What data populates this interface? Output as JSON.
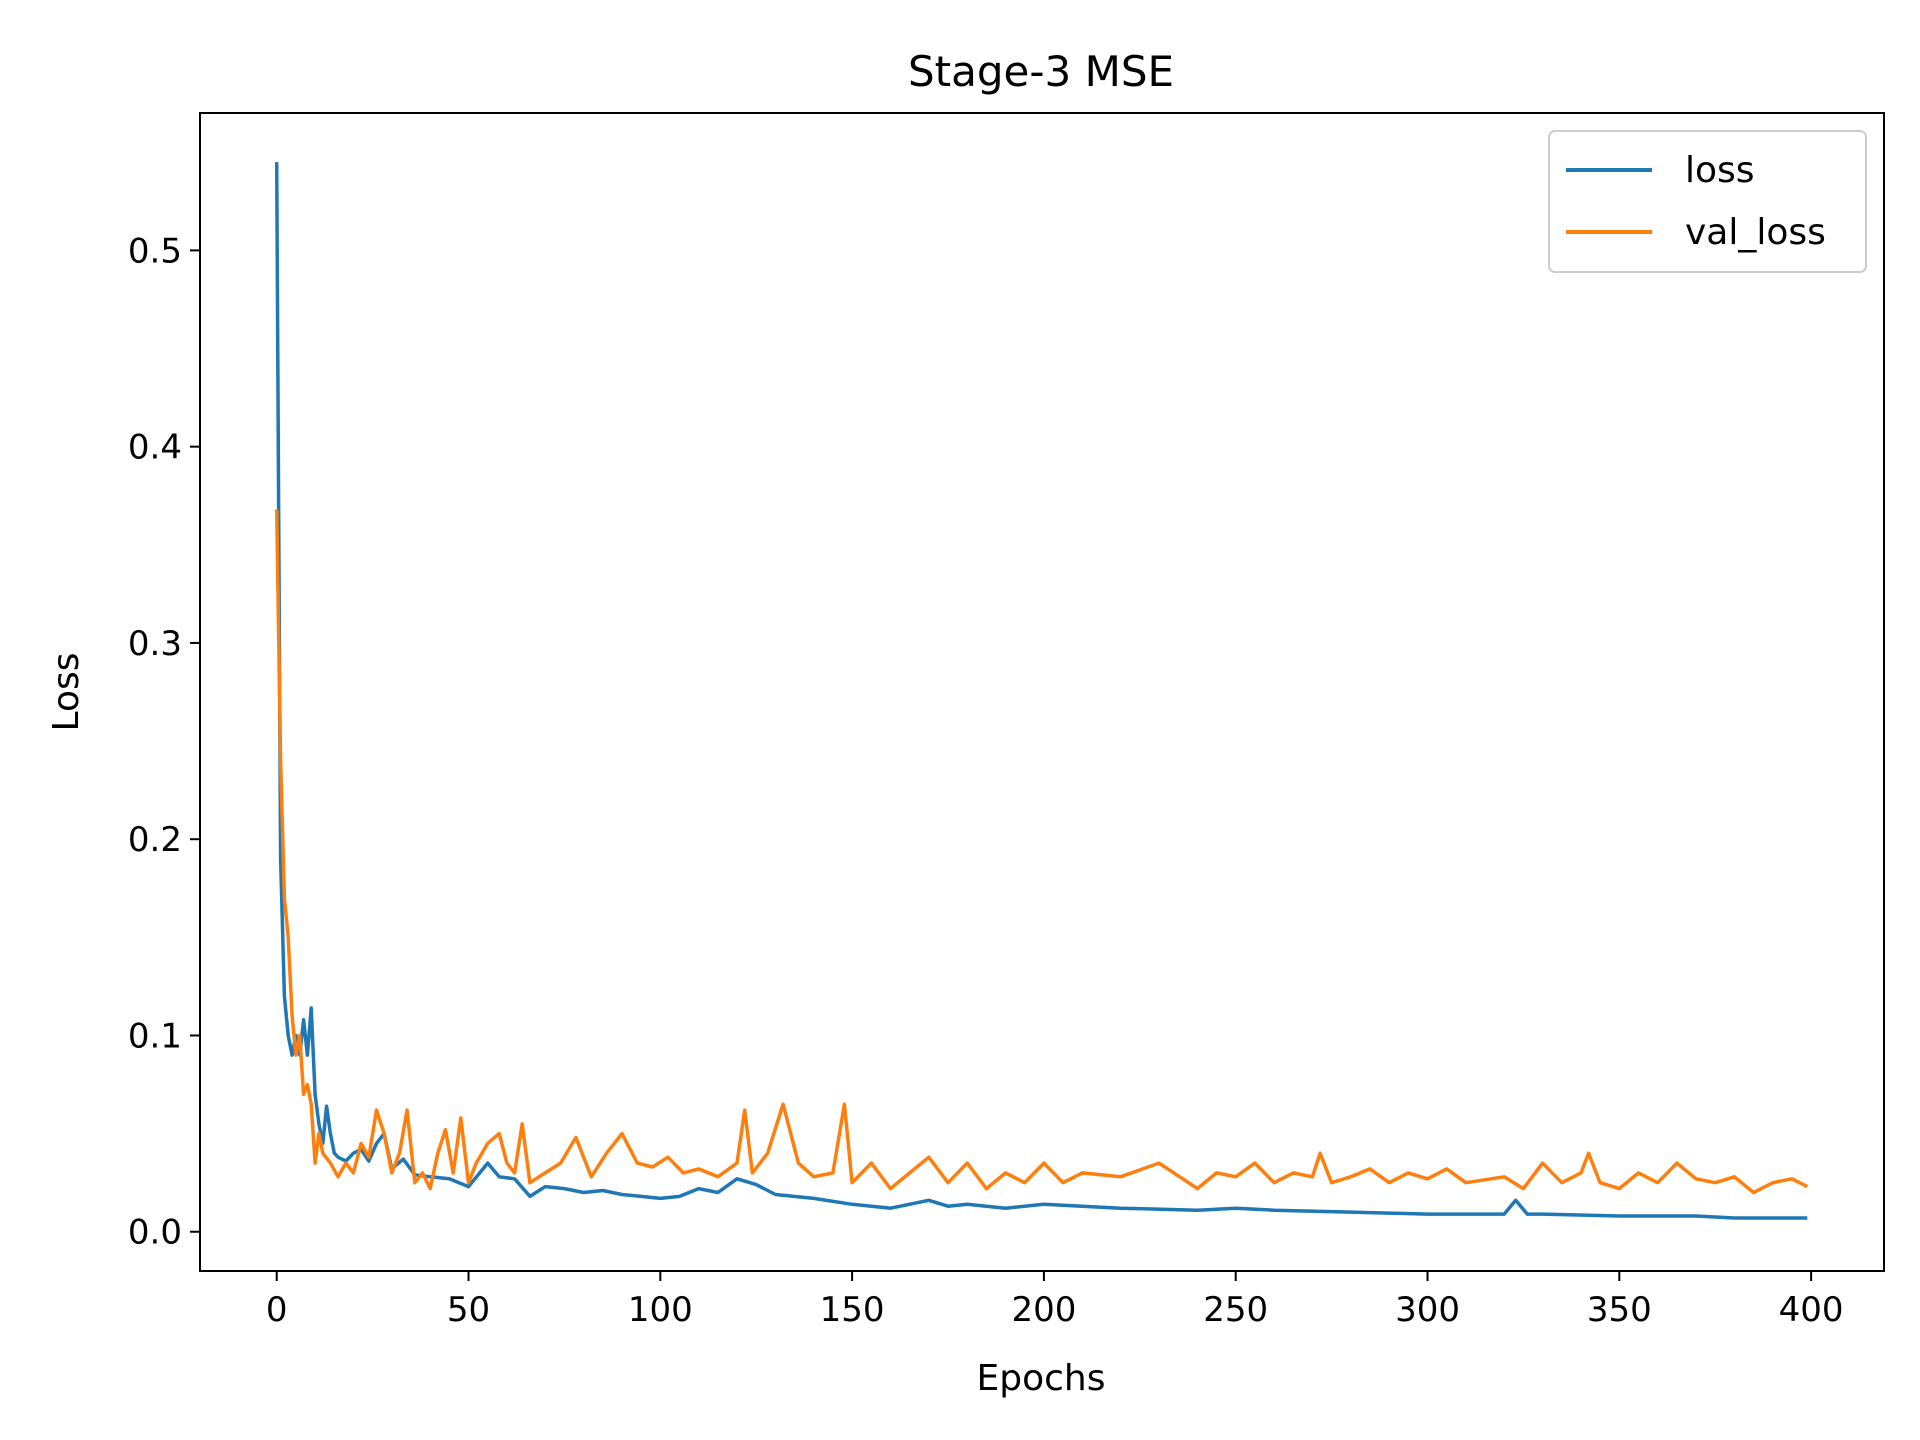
{
  "chart_data": {
    "type": "line",
    "title": "Stage-3 MSE",
    "xlabel": "Epochs",
    "ylabel": "Loss",
    "xlim": [
      -20,
      419
    ],
    "ylim": [
      -0.02,
      0.57
    ],
    "xticks": [
      0,
      50,
      100,
      150,
      200,
      250,
      300,
      350,
      400
    ],
    "xtick_labels": [
      "0",
      "50",
      "100",
      "150",
      "200",
      "250",
      "300",
      "350",
      "400"
    ],
    "yticks": [
      0.0,
      0.1,
      0.2,
      0.3,
      0.4,
      0.5
    ],
    "ytick_labels": [
      "0.0",
      "0.1",
      "0.2",
      "0.3",
      "0.4",
      "0.5"
    ],
    "grid": false,
    "legend_position": "top-right",
    "series": [
      {
        "name": "loss",
        "color": "#1f77b4",
        "x": [
          0,
          1,
          2,
          3,
          4,
          5,
          6,
          7,
          8,
          9,
          10,
          11,
          12,
          13,
          14,
          15,
          16,
          18,
          20,
          22,
          24,
          26,
          28,
          30,
          33,
          36,
          40,
          45,
          50,
          55,
          58,
          62,
          66,
          70,
          75,
          80,
          85,
          90,
          95,
          100,
          105,
          110,
          115,
          120,
          125,
          130,
          140,
          150,
          160,
          170,
          175,
          180,
          190,
          200,
          220,
          240,
          250,
          260,
          280,
          300,
          320,
          323,
          326,
          330,
          350,
          370,
          380,
          390,
          399
        ],
        "y": [
          0.545,
          0.19,
          0.12,
          0.1,
          0.09,
          0.1,
          0.09,
          0.108,
          0.09,
          0.114,
          0.07,
          0.055,
          0.045,
          0.064,
          0.05,
          0.04,
          0.038,
          0.036,
          0.04,
          0.042,
          0.036,
          0.045,
          0.05,
          0.032,
          0.037,
          0.029,
          0.028,
          0.027,
          0.023,
          0.035,
          0.028,
          0.027,
          0.018,
          0.023,
          0.022,
          0.02,
          0.021,
          0.019,
          0.018,
          0.017,
          0.018,
          0.022,
          0.02,
          0.027,
          0.024,
          0.019,
          0.017,
          0.014,
          0.012,
          0.016,
          0.013,
          0.014,
          0.012,
          0.014,
          0.012,
          0.011,
          0.012,
          0.011,
          0.01,
          0.009,
          0.009,
          0.016,
          0.009,
          0.009,
          0.008,
          0.008,
          0.007,
          0.007,
          0.007
        ]
      },
      {
        "name": "val_loss",
        "color": "#ff7f0e",
        "x": [
          0,
          1,
          2,
          3,
          4,
          5,
          6,
          7,
          8,
          9,
          10,
          11,
          12,
          14,
          16,
          18,
          20,
          22,
          24,
          26,
          28,
          30,
          32,
          34,
          36,
          38,
          40,
          42,
          44,
          46,
          48,
          50,
          52,
          55,
          58,
          60,
          62,
          64,
          66,
          70,
          74,
          78,
          82,
          86,
          90,
          94,
          98,
          102,
          106,
          110,
          115,
          120,
          122,
          124,
          128,
          132,
          136,
          140,
          145,
          148,
          150,
          155,
          160,
          165,
          170,
          175,
          180,
          185,
          190,
          195,
          200,
          205,
          210,
          220,
          230,
          240,
          245,
          250,
          255,
          260,
          265,
          270,
          272,
          275,
          280,
          285,
          290,
          295,
          300,
          305,
          310,
          320,
          325,
          330,
          335,
          340,
          342,
          345,
          350,
          355,
          360,
          365,
          370,
          375,
          380,
          385,
          390,
          395,
          399
        ],
        "y": [
          0.368,
          0.24,
          0.17,
          0.15,
          0.11,
          0.09,
          0.1,
          0.07,
          0.075,
          0.065,
          0.035,
          0.05,
          0.04,
          0.035,
          0.028,
          0.035,
          0.03,
          0.045,
          0.038,
          0.062,
          0.05,
          0.03,
          0.04,
          0.062,
          0.025,
          0.03,
          0.022,
          0.04,
          0.052,
          0.03,
          0.058,
          0.025,
          0.035,
          0.045,
          0.05,
          0.035,
          0.03,
          0.055,
          0.025,
          0.03,
          0.035,
          0.048,
          0.028,
          0.04,
          0.05,
          0.035,
          0.033,
          0.038,
          0.03,
          0.032,
          0.028,
          0.035,
          0.062,
          0.03,
          0.04,
          0.065,
          0.035,
          0.028,
          0.03,
          0.065,
          0.025,
          0.035,
          0.022,
          0.03,
          0.038,
          0.025,
          0.035,
          0.022,
          0.03,
          0.025,
          0.035,
          0.025,
          0.03,
          0.028,
          0.035,
          0.022,
          0.03,
          0.028,
          0.035,
          0.025,
          0.03,
          0.028,
          0.04,
          0.025,
          0.028,
          0.032,
          0.025,
          0.03,
          0.027,
          0.032,
          0.025,
          0.028,
          0.022,
          0.035,
          0.025,
          0.03,
          0.04,
          0.025,
          0.022,
          0.03,
          0.025,
          0.035,
          0.027,
          0.025,
          0.028,
          0.02,
          0.025,
          0.027,
          0.023
        ]
      }
    ]
  }
}
